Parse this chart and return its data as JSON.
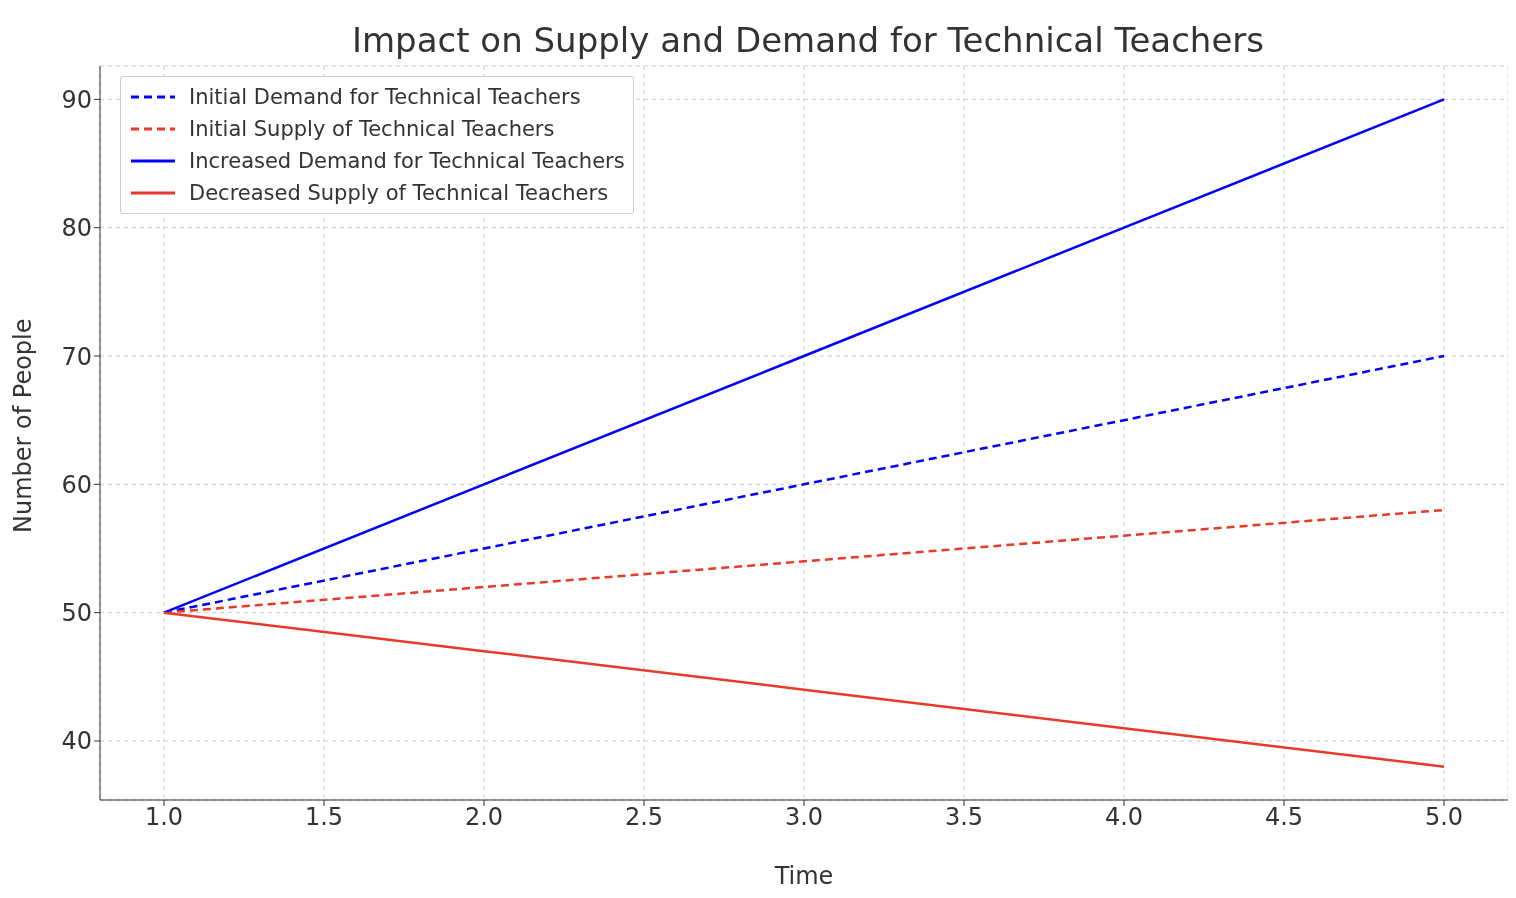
{
  "chart_data": {
    "type": "line",
    "title": "Impact on Supply and Demand for Technical Teachers",
    "xlabel": "Time",
    "ylabel": "Number of People",
    "x": [
      1,
      2,
      3,
      4,
      5
    ],
    "series": [
      {
        "name": "Initial Demand for Technical Teachers",
        "color": "#0000ff",
        "line_style": "dashed",
        "values": [
          50,
          55,
          60,
          65,
          70
        ]
      },
      {
        "name": "Initial Supply of Technical Teachers",
        "color": "#e8392b",
        "line_style": "dashed",
        "values": [
          50,
          52,
          54,
          56,
          58
        ]
      },
      {
        "name": "Increased Demand for Technical Teachers",
        "color": "#0000ff",
        "line_style": "solid",
        "values": [
          50,
          60,
          70,
          80,
          90
        ]
      },
      {
        "name": "Decreased Supply of Technical Teachers",
        "color": "#e8392b",
        "line_style": "solid",
        "values": [
          50,
          47,
          44,
          41,
          38
        ]
      }
    ],
    "xlim": [
      0.8,
      5.2
    ],
    "xticks": [
      {
        "value": 1,
        "label": "1.0"
      },
      {
        "value": 1.5,
        "label": "1.5"
      },
      {
        "value": 2,
        "label": "2.0"
      },
      {
        "value": 2.5,
        "label": "2.5"
      },
      {
        "value": 3,
        "label": "3.0"
      },
      {
        "value": 3.5,
        "label": "3.5"
      },
      {
        "value": 4,
        "label": "4.0"
      },
      {
        "value": 4.5,
        "label": "4.5"
      },
      {
        "value": 5,
        "label": "5.0"
      }
    ],
    "ylim": [
      35.4,
      92.6
    ],
    "yticks": [
      40,
      50,
      60,
      70,
      80,
      90
    ],
    "grid": true,
    "legend": "top left",
    "marker": "none"
  }
}
